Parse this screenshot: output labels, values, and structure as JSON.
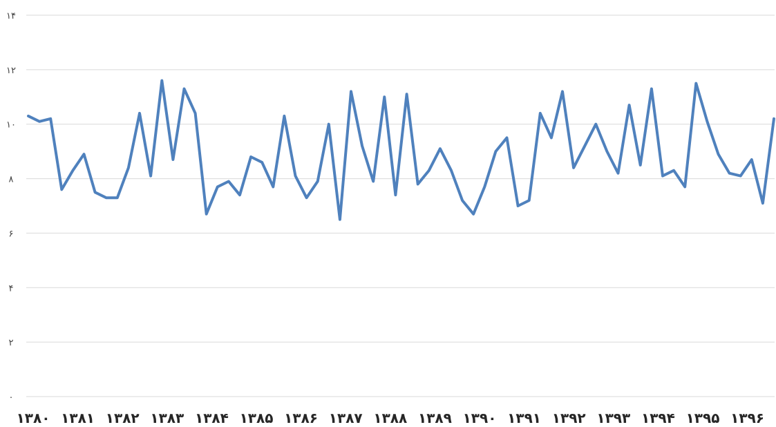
{
  "chart_data": {
    "type": "line",
    "title": "",
    "xlabel": "",
    "ylabel": "",
    "ylim": [
      0,
      14
    ],
    "y_ticks": [
      "۰",
      "۲",
      "۴",
      "۶",
      "۸",
      "۱۰",
      "۱۲",
      "۱۴"
    ],
    "y_tick_values": [
      0,
      2,
      4,
      6,
      8,
      10,
      12,
      14
    ],
    "x_tick_labels": [
      "۱۳۸۰",
      "۱۳۸۱",
      "۱۳۸۲",
      "۱۳۸۳",
      "۱۳۸۴",
      "۱۳۸۵",
      "۱۳۸۶",
      "۱۳۸۷",
      "۱۳۸۸",
      "۱۳۸۹",
      "۱۳۹۰",
      "۱۳۹۱",
      "۱۳۹۲",
      "۱۳۹۳",
      "۱۳۹۴",
      "۱۳۹۵",
      "۱۳۹۶"
    ],
    "points_per_label": 4,
    "grid": true,
    "legend": "none",
    "color": "#4f81bd",
    "series": [
      {
        "values": [
          10.3,
          10.1,
          10.2,
          7.6,
          8.3,
          8.9,
          7.5,
          7.3,
          7.3,
          8.4,
          10.4,
          8.1,
          11.6,
          8.7,
          11.3,
          10.4,
          6.7,
          7.7,
          7.9,
          7.4,
          8.8,
          8.6,
          7.7,
          10.3,
          8.1,
          7.3,
          7.9,
          10.0,
          6.5,
          11.2,
          9.2,
          7.9,
          11.0,
          7.4,
          11.1,
          7.8,
          8.3,
          9.1,
          8.3,
          7.2,
          6.7,
          7.7,
          9.0,
          9.5,
          7.0,
          7.2,
          10.4,
          9.5,
          11.2,
          8.4,
          9.2,
          10.0,
          9.0,
          8.2,
          10.7,
          8.5,
          11.3,
          8.1,
          8.3,
          7.7,
          11.5,
          10.1,
          8.9,
          8.2,
          8.1,
          8.7,
          7.1,
          10.2
        ]
      }
    ]
  }
}
